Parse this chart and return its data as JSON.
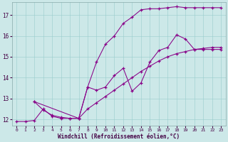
{
  "xlabel": "Windchill (Refroidissement éolien,°C)",
  "background_color": "#cce8e8",
  "line_color": "#880088",
  "xlim": [
    -0.5,
    23.5
  ],
  "ylim": [
    11.7,
    17.6
  ],
  "yticks": [
    12,
    13,
    14,
    15,
    16,
    17
  ],
  "xticks": [
    0,
    1,
    2,
    3,
    4,
    5,
    6,
    7,
    8,
    9,
    10,
    11,
    12,
    13,
    14,
    15,
    16,
    17,
    18,
    19,
    20,
    21,
    22,
    23
  ],
  "line1_x": [
    0,
    1,
    2,
    3,
    4,
    5,
    6,
    7,
    8,
    9,
    10,
    11,
    12,
    13,
    14,
    15,
    16,
    17,
    18,
    19,
    20,
    21,
    22,
    23
  ],
  "line1_y": [
    11.9,
    11.9,
    11.95,
    12.5,
    12.15,
    12.05,
    12.05,
    12.05,
    12.5,
    12.8,
    13.1,
    13.4,
    13.7,
    14.0,
    14.3,
    14.55,
    14.8,
    15.0,
    15.15,
    15.25,
    15.35,
    15.4,
    15.45,
    15.45
  ],
  "line2_x": [
    2,
    3,
    4,
    5,
    6,
    7,
    8,
    9,
    10,
    11,
    12,
    13,
    14,
    15,
    16,
    17,
    18,
    19,
    20,
    21,
    22,
    23
  ],
  "line2_y": [
    12.85,
    12.45,
    12.2,
    12.1,
    12.05,
    12.05,
    13.55,
    13.4,
    13.55,
    14.1,
    14.45,
    13.35,
    13.75,
    14.75,
    15.3,
    15.45,
    16.05,
    15.85,
    15.35,
    15.35,
    15.35,
    15.35
  ],
  "line3_x": [
    2,
    7,
    8,
    9,
    10,
    11,
    12,
    13,
    14,
    15,
    16,
    17,
    18,
    19,
    20,
    21,
    22,
    23
  ],
  "line3_y": [
    12.85,
    12.05,
    13.55,
    14.75,
    15.6,
    16.0,
    16.6,
    16.9,
    17.25,
    17.3,
    17.3,
    17.35,
    17.4,
    17.35,
    17.35,
    17.35,
    17.35,
    17.35
  ]
}
